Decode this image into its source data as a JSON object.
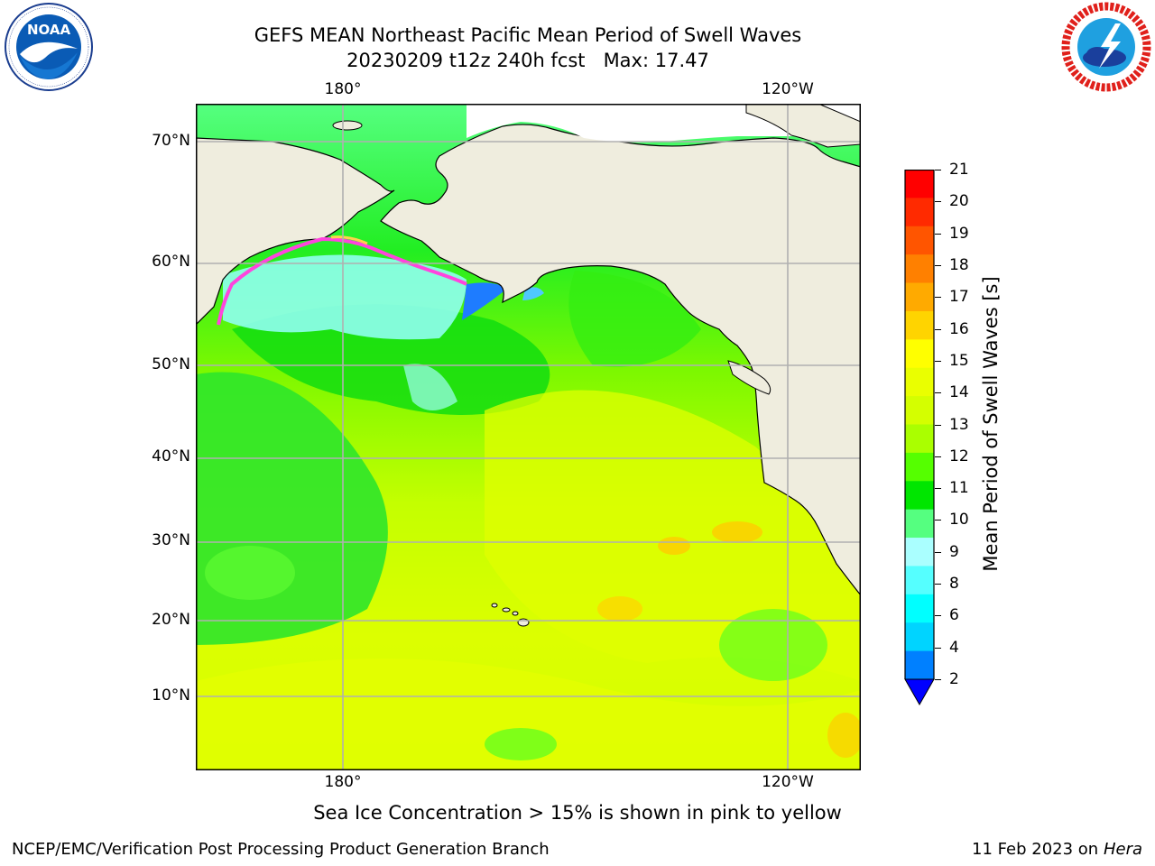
{
  "header": {
    "title_line1": "GEFS MEAN Northeast Pacific Mean Period of Swell Waves",
    "title_line2": "20230209 t12z 240h fcst   Max: 17.47"
  },
  "logos": {
    "left": {
      "name": "NOAA",
      "ring_text": "NATIONAL OCEANIC AND ATMOSPHERIC ADMINISTRATION · U.S. DEPARTMENT OF COMMERCE"
    },
    "right": {
      "name": "NATIONAL WEATHER SERVICE"
    }
  },
  "map": {
    "lon_labels_top": [
      "180°",
      "120°W"
    ],
    "lon_labels_bottom": [
      "180°",
      "120°W"
    ],
    "lat_labels": [
      "70°N",
      "60°N",
      "50°N",
      "40°N",
      "30°N",
      "20°N",
      "10°N"
    ],
    "land_color": "#efedde",
    "grid_color": "#b0b0b0"
  },
  "colorbar": {
    "label": "Mean Period of Swell Waves [s]",
    "ticks": [
      "21",
      "20",
      "19",
      "18",
      "17",
      "16",
      "15",
      "14",
      "13",
      "12",
      "11",
      "10",
      "9",
      "8",
      "6",
      "4",
      "2"
    ],
    "colors": [
      "#ff0000",
      "#ff2a00",
      "#ff5500",
      "#ff8000",
      "#ffaa00",
      "#ffd400",
      "#ffff00",
      "#eaff00",
      "#d4ff00",
      "#aaff00",
      "#55ff00",
      "#00e600",
      "#55ff80",
      "#aaffff",
      "#55ffff",
      "#00ffff",
      "#00d4ff",
      "#0080ff"
    ],
    "extend_color": "#0000ff"
  },
  "note": "Sea Ice Concentration > 15% is shown in pink to yellow",
  "footer": {
    "left": "NCEP/EMC/Verification Post Processing Product Generation Branch",
    "right_date": "11 Feb 2023 on",
    "right_machine": "Hera"
  }
}
